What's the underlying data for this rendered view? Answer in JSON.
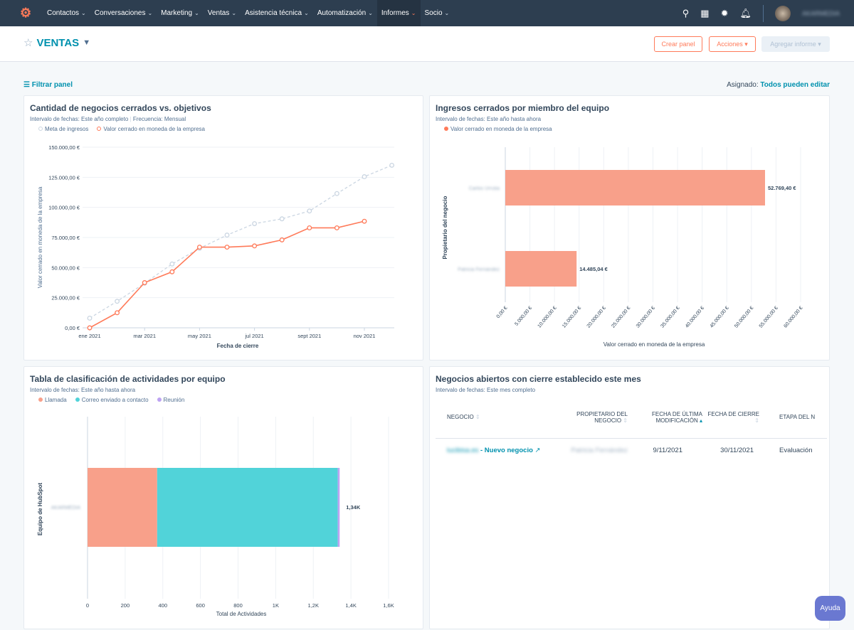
{
  "nav": {
    "items": [
      "Contactos",
      "Conversaciones",
      "Marketing",
      "Ventas",
      "Asistencia técnica",
      "Automatización",
      "Informes",
      "Socio"
    ],
    "active": "Informes",
    "icons": [
      "search-icon",
      "marketplace-icon",
      "gear-icon",
      "bell-icon"
    ],
    "user": "AKARMEDIA"
  },
  "header": {
    "title": "VENTAS",
    "create": "Crear panel",
    "actions": "Acciones ▾",
    "add": "Agregar informe ▾"
  },
  "toolbar": {
    "filter": "Filtrar panel",
    "assigned_label": "Asignado:",
    "assigned_value": "Todos pueden editar"
  },
  "help": "Ayuda",
  "colors": {
    "accent": "#0091ae",
    "orange": "#ff7a59",
    "salmon": "#f8a08a",
    "teal": "#51d3d9",
    "purple": "#bda3f2",
    "goal": "#cbd6e2"
  },
  "panels": {
    "p1": {
      "title": "Cantidad de negocios cerrados vs. objetivos",
      "subtitle": "Intervalo de fechas: Este año completo",
      "subtitle2": "Frecuencia: Mensual"
    },
    "p2": {
      "title": "Ingresos cerrados por miembro del equipo",
      "subtitle": "Intervalo de fechas: Este año hasta ahora"
    },
    "p3": {
      "title": "Tabla de clasificación de actividades por equipo",
      "subtitle": "Intervalo de fechas: Este año hasta ahora"
    },
    "p4": {
      "title": "Negocios abiertos con cierre establecido este mes",
      "subtitle": "Intervalo de fechas: Este mes completo",
      "columns": [
        "Negocio",
        "Propietario del negocio",
        "Fecha de última modificación",
        "Fecha de cierre",
        "Etapa del n"
      ],
      "rows": [
        {
          "deal_prefix": "lucibisa.es",
          "deal": " - Nuevo negocio",
          "owner": "Patricia Fernández",
          "modified": "9/11/2021",
          "close": "30/11/2021",
          "stage": "Evaluación"
        }
      ]
    }
  },
  "chart_data": [
    {
      "type": "line",
      "title": "Cantidad de negocios cerrados vs. objetivos",
      "xlabel": "Fecha de cierre",
      "ylabel": "Valor cerrado en moneda de la empresa",
      "x": [
        "ene 2021",
        "feb 2021",
        "mar 2021",
        "abr 2021",
        "may 2021",
        "jun 2021",
        "jul 2021",
        "ago 2021",
        "sept 2021",
        "oct 2021",
        "nov 2021",
        "dic 2021"
      ],
      "xticks": [
        "ene 2021",
        "mar 2021",
        "may 2021",
        "jul 2021",
        "sept 2021",
        "nov 2021"
      ],
      "yticks": [
        "0,00 €",
        "25.000,00 €",
        "50.000,00 €",
        "75.000,00 €",
        "100.000,00 €",
        "125.000,00 €",
        "150.000,00 €"
      ],
      "ylim": [
        0,
        150000
      ],
      "grid": true,
      "legend": "top-left",
      "series": [
        {
          "name": "Meta de ingresos",
          "values": [
            8000,
            22000,
            37000,
            53000,
            66000,
            77000,
            86500,
            90500,
            97000,
            111500,
            125500,
            135000
          ]
        },
        {
          "name": "Valor cerrado en moneda de la empresa",
          "values": [
            0,
            12500,
            37500,
            46500,
            67000,
            67000,
            68000,
            73000,
            83000,
            83000,
            88500,
            null
          ]
        }
      ]
    },
    {
      "type": "bar",
      "orientation": "horizontal",
      "title": "Ingresos cerrados por miembro del equipo",
      "xlabel": "Valor cerrado en moneda de la empresa",
      "ylabel": "Propietario del negocio",
      "categories": [
        "Carlos Urrutia",
        "Patricia Fernández"
      ],
      "series": [
        {
          "name": "Valor cerrado en moneda de la empresa",
          "values": [
            52769.4,
            14485.04
          ]
        }
      ],
      "data_labels": [
        "52.769,40 €",
        "14.485,04 €"
      ],
      "xlim": [
        0,
        60000
      ],
      "xticks": [
        "0,00 €",
        "5.000,00 €",
        "10.000,00 €",
        "15.000,00 €",
        "20.000,00 €",
        "25.000,00 €",
        "30.000,00 €",
        "35.000,00 €",
        "40.000,00 €",
        "45.000,00 €",
        "50.000,00 €",
        "55.000,00 €",
        "60.000,00 €"
      ],
      "grid": true,
      "legend": "top-left"
    },
    {
      "type": "bar",
      "orientation": "horizontal",
      "stacked": true,
      "title": "Tabla de clasificación de actividades por equipo",
      "xlabel": "Total de Actividades",
      "ylabel": "Equipo de HubSpot",
      "categories": [
        "AKARMEDIA"
      ],
      "series": [
        {
          "name": "Llamada",
          "values": [
            370
          ]
        },
        {
          "name": "Correo enviado a contacto",
          "values": [
            960
          ]
        },
        {
          "name": "Reunión",
          "values": [
            10
          ]
        }
      ],
      "data_labels": [
        "1,34K"
      ],
      "xlim": [
        0,
        1600
      ],
      "xticks": [
        "0",
        "200",
        "400",
        "600",
        "800",
        "1K",
        "1,2K",
        "1,4K",
        "1,6K"
      ],
      "grid": true,
      "legend": "top-left"
    }
  ]
}
